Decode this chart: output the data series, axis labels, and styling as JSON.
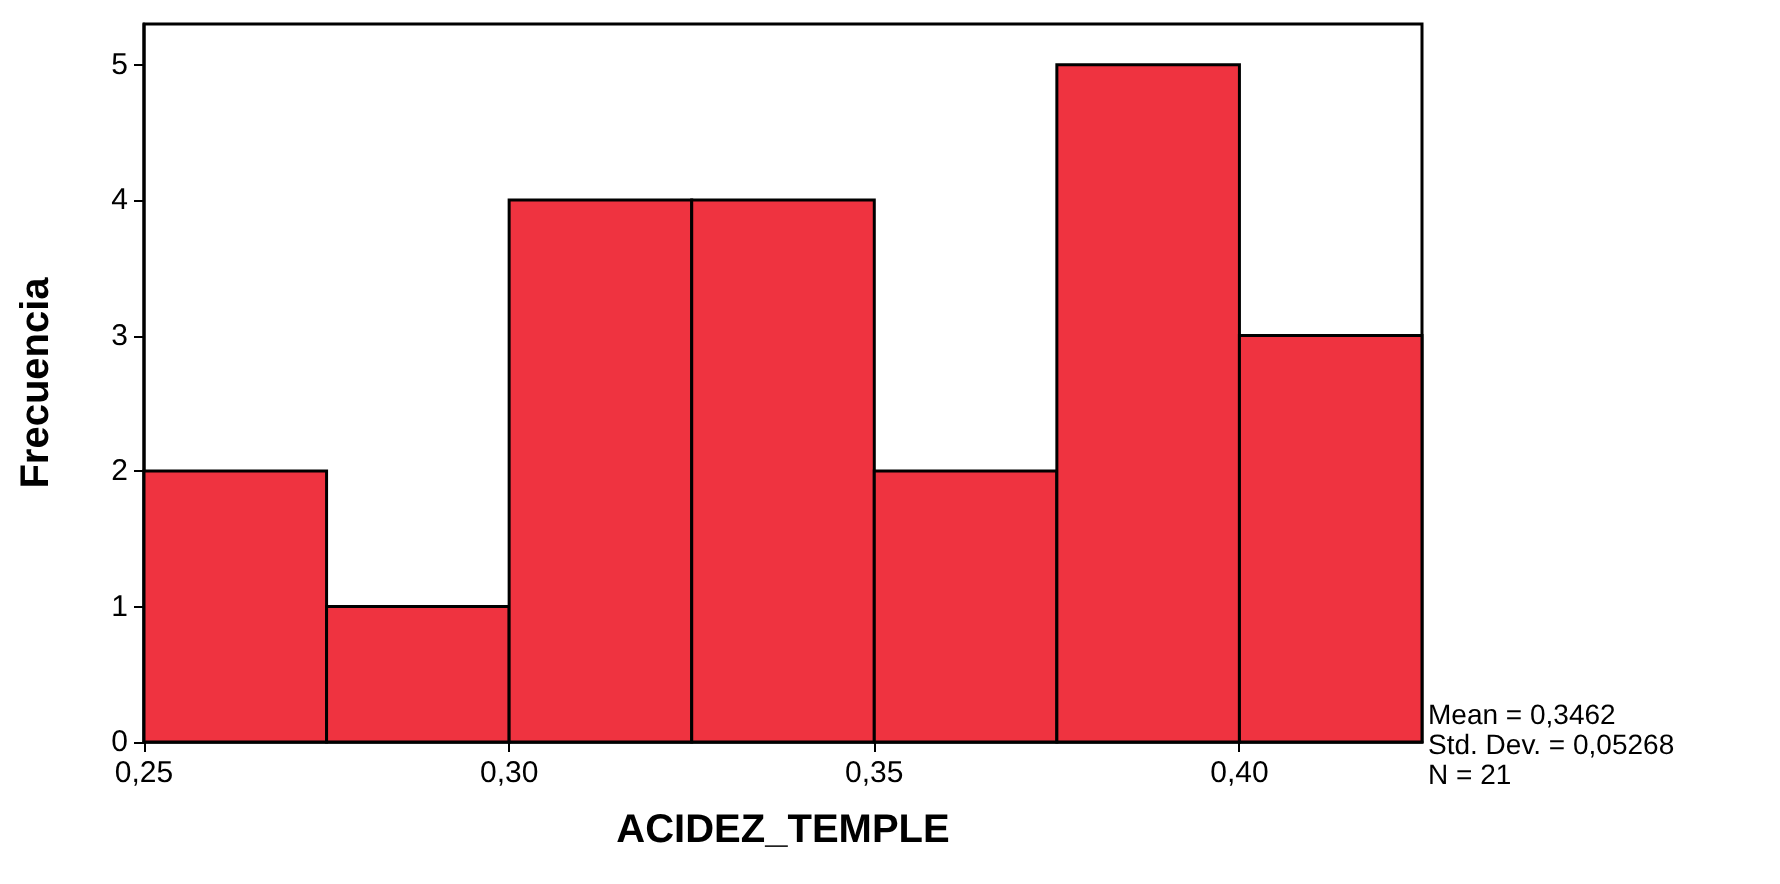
{
  "chart_data": {
    "type": "histogram",
    "xlabel": "ACIDEZ_TEMPLE",
    "ylabel": "Frecuencia",
    "bins": [
      0.25,
      0.275,
      0.3,
      0.325,
      0.35,
      0.375,
      0.4,
      0.425
    ],
    "values": [
      2,
      1,
      4,
      4,
      2,
      5,
      3
    ],
    "color": "#ef3340",
    "xlim": [
      0.25,
      0.425
    ],
    "xticks": [
      {
        "value": 0.25,
        "label": "0,25"
      },
      {
        "value": 0.3,
        "label": "0,30"
      },
      {
        "value": 0.35,
        "label": "0,35"
      },
      {
        "value": 0.4,
        "label": "0,40"
      }
    ],
    "ylim": [
      0,
      5.3
    ],
    "yticks": [
      0,
      1,
      2,
      3,
      4,
      5
    ],
    "grid": false,
    "annotations": [
      "Mean = 0,3462",
      "Std. Dev. = 0,05268",
      "N = 21"
    ]
  }
}
